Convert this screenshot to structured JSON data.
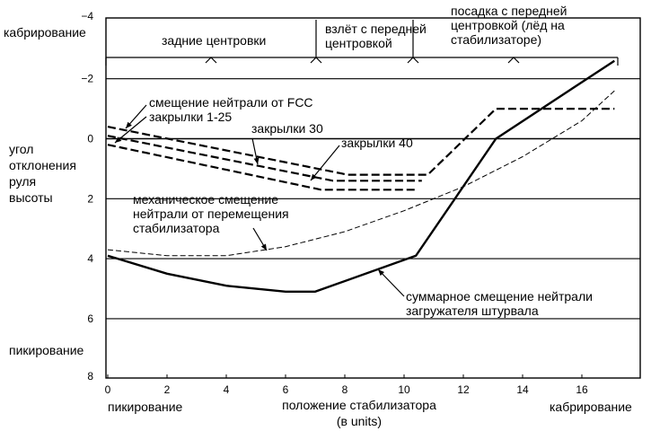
{
  "chart_data": {
    "type": "line",
    "xlabel": [
      "положение стабилизатора",
      "(в units)"
    ],
    "ylabel": [
      "угол",
      "отклонения",
      "руля",
      "высоты"
    ],
    "x_low_label": "пикирование",
    "x_high_label": "кабрирование",
    "y_up_label": "кабрирование",
    "y_down_label": "пикирование",
    "xlim": [
      0,
      18
    ],
    "ylim": [
      -4,
      8
    ],
    "y_inverted": true,
    "x_ticks": [
      "0",
      "2",
      "4",
      "6",
      "8",
      "10",
      "12",
      "14",
      "16"
    ],
    "y_ticks": [
      "−4",
      "−2",
      "0",
      "2",
      "4",
      "6",
      "8"
    ],
    "grid": "horizontal",
    "regions": [
      {
        "label": [
          "задние центровки"
        ],
        "from": 0,
        "to": 7.1
      },
      {
        "label": [
          "взлёт с передней",
          "центровкой"
        ],
        "from": 7.1,
        "to": 10.3
      },
      {
        "label": [
          "посадка с передней",
          "центровкой (лёд на",
          "стабилизаторе)"
        ],
        "from": 10.3,
        "to": 17.8
      }
    ],
    "series": [
      {
        "name": "смещение нейтрали от FCC закрылки 1-25",
        "style": "dashed",
        "x": [
          0,
          8.1,
          10.8,
          13.1,
          17.1
        ],
        "y": [
          -0.4,
          1.2,
          1.2,
          -1.0,
          -1.0
        ]
      },
      {
        "name": "закрылки 30",
        "style": "dashed",
        "x": [
          0,
          7.6,
          10.6
        ],
        "y": [
          -0.1,
          1.4,
          1.4
        ]
      },
      {
        "name": "закрылки 40",
        "style": "dashed",
        "x": [
          0,
          7.2,
          10.4
        ],
        "y": [
          0.2,
          1.7,
          1.7
        ]
      },
      {
        "name": "механическое смещение нейтрали от перемещения стабилизатора",
        "style": "thin-dashed",
        "x": [
          0,
          2,
          4,
          6,
          8,
          10,
          12,
          14,
          16,
          17.1
        ],
        "y": [
          3.7,
          3.9,
          3.9,
          3.6,
          3.1,
          2.4,
          1.6,
          0.6,
          -0.6,
          -1.6
        ]
      },
      {
        "name": "суммарное смещение нейтрали загружателя штурвала",
        "style": "solid",
        "x": [
          0,
          2,
          4,
          6,
          7,
          10.4,
          13.1,
          17.1
        ],
        "y": [
          3.9,
          4.5,
          4.9,
          5.1,
          5.1,
          3.9,
          0.0,
          -2.6
        ]
      }
    ],
    "annotations": [
      {
        "text": [
          "смещение нейтрали от FCC",
          "закрылки 1-25"
        ],
        "target_series": [
          0,
          1
        ]
      },
      {
        "text": [
          "закрылки 30"
        ],
        "target_series": 1
      },
      {
        "text": [
          "закрылки 40"
        ],
        "target_series": 2
      },
      {
        "text": [
          "механическое смещение",
          "нейтрали от перемещения",
          "стабилизатора"
        ],
        "target_series": 3
      },
      {
        "text": [
          "суммарное смещение нейтрали",
          "загружателя штурвала"
        ],
        "target_series": 4
      }
    ]
  }
}
